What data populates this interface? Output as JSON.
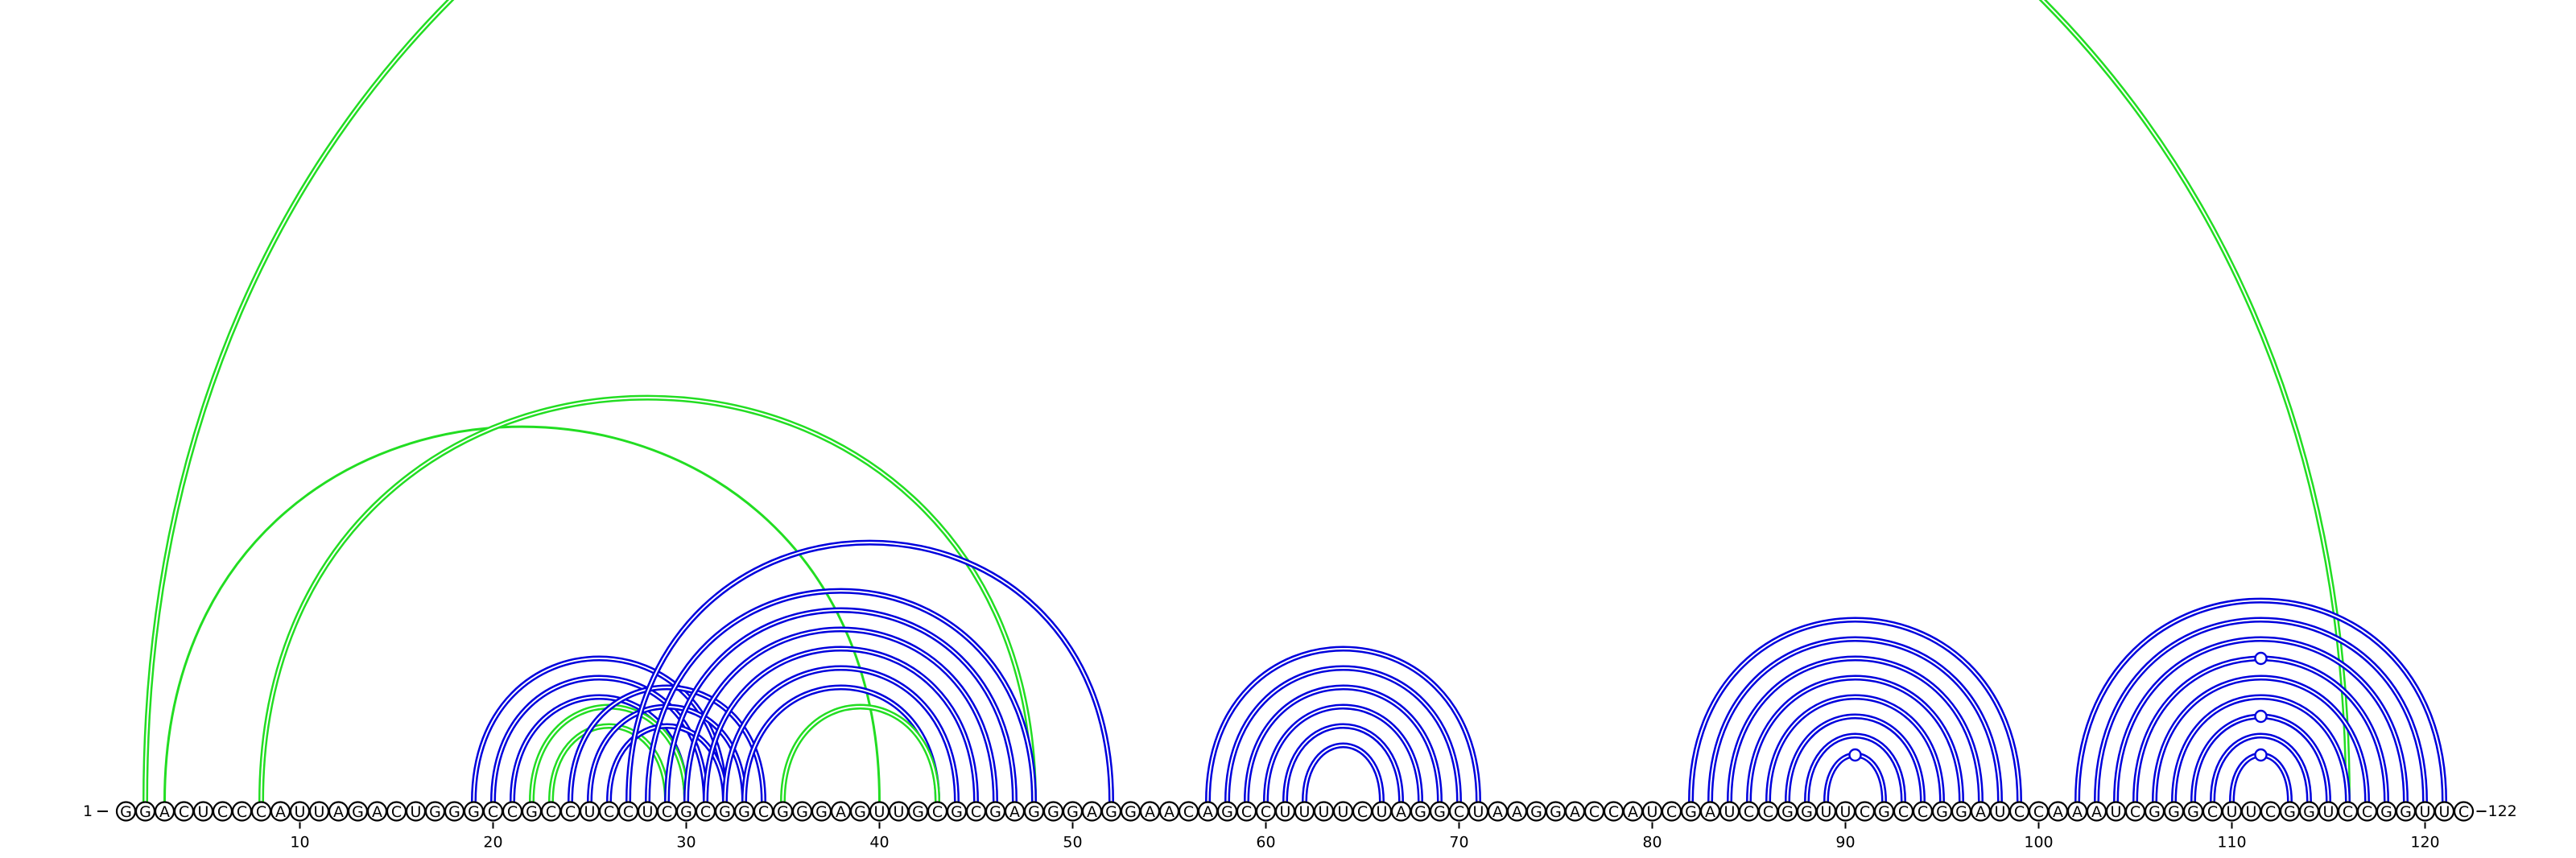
{
  "sequence": "GGACUCCCAUUAGACUGGGCCGCCUCCUCGCGGCGGGAGUUGCGCGAGGGAGGAACAGCCUUUUCUAGGCUAAGGACCAUCGAUCCGGUUCGCCGGAUCCAAAUCGGGCUUCGGUCCGGUUC",
  "start_label": "1",
  "end_label": "122",
  "ticks": [
    10,
    20,
    30,
    40,
    50,
    60,
    70,
    80,
    90,
    100,
    110,
    120
  ],
  "colors": {
    "blue": "#0000dd",
    "green": "#22dd22",
    "outline": "#000000"
  },
  "arc_groups": [
    {
      "color": "green",
      "style": "double",
      "pairs": [
        [
          2,
          116
        ]
      ]
    },
    {
      "color": "green",
      "style": "single",
      "pairs": [
        [
          3,
          40
        ]
      ]
    },
    {
      "color": "green",
      "style": "double",
      "pairs": [
        [
          8,
          48
        ]
      ]
    },
    {
      "color": "blue",
      "style": "double",
      "pairs": [
        [
          19,
          32
        ],
        [
          20,
          31
        ],
        [
          21,
          30
        ]
      ]
    },
    {
      "color": "green",
      "style": "double",
      "pairs": [
        [
          22,
          30
        ],
        [
          23,
          29
        ]
      ]
    },
    {
      "color": "blue",
      "style": "double",
      "pairs": [
        [
          24,
          34
        ],
        [
          25,
          33
        ],
        [
          26,
          32
        ]
      ]
    },
    {
      "color": "blue",
      "style": "double",
      "pairs": [
        [
          27,
          52
        ],
        [
          28,
          48
        ],
        [
          29,
          47
        ],
        [
          30,
          46
        ],
        [
          31,
          45
        ],
        [
          32,
          44
        ],
        [
          33,
          43
        ]
      ]
    },
    {
      "color": "green",
      "style": "double",
      "pairs": [
        [
          35,
          43
        ]
      ]
    },
    {
      "color": "blue",
      "style": "double",
      "pairs": [
        [
          57,
          71
        ],
        [
          58,
          70
        ],
        [
          59,
          69
        ],
        [
          60,
          68
        ],
        [
          61,
          67
        ],
        [
          62,
          66
        ]
      ]
    },
    {
      "color": "blue",
      "style": "double",
      "pairs": [
        [
          82,
          99
        ],
        [
          83,
          98
        ],
        [
          84,
          97
        ],
        [
          85,
          96
        ],
        [
          86,
          95
        ],
        [
          87,
          94
        ],
        [
          88,
          93
        ],
        [
          89,
          92
        ]
      ]
    },
    {
      "color": "blue",
      "style": "double",
      "pairs": [
        [
          102,
          121
        ],
        [
          103,
          120
        ],
        [
          104,
          119
        ],
        [
          105,
          118
        ],
        [
          106,
          117
        ],
        [
          107,
          116
        ],
        [
          108,
          115
        ],
        [
          109,
          114
        ],
        [
          110,
          113
        ]
      ]
    }
  ],
  "markers": [
    {
      "color": "blue",
      "position": 90.5,
      "arc_pair": [
        89,
        92
      ]
    },
    {
      "color": "blue",
      "position": 111.5,
      "arc_pair": [
        110,
        113
      ]
    },
    {
      "color": "blue",
      "position": 111.5,
      "arc_pair": [
        108,
        115
      ]
    },
    {
      "color": "blue",
      "position": 111.5,
      "arc_pair": [
        105,
        118
      ]
    }
  ]
}
